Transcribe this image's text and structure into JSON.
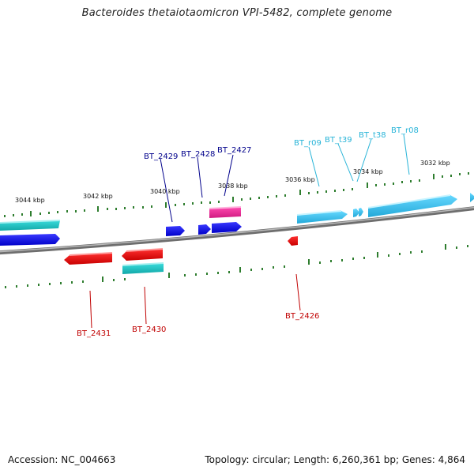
{
  "title": "Bacteroides thetaiotaomicron VPI-5482, complete genome",
  "footer": {
    "accession": "Accession: NC_004663",
    "summary": "Topology: circular; Length: 6,260,361 bp; Genes: 4,864"
  },
  "colors": {
    "backbone": "#8a8a8a",
    "tick": "#2e7d2e",
    "blue_label": "#00008b",
    "cyan_label": "#28b4d8",
    "red_label": "#c00000",
    "cds_blue": "#0000ee",
    "cds_red": "#ee0000",
    "cds_teal": "#1fc8c8",
    "cds_magenta": "#ee2a9a",
    "rna_cyan": "#3ec8f0"
  },
  "scale_labels": [
    "3044 kbp",
    "3042 kbp",
    "3040 kbp",
    "3038 kbp",
    "3036 kbp",
    "3034 kbp",
    "3032 kbp"
  ],
  "gene_labels": {
    "bt2429": "BT_2429",
    "bt2428": "BT_2428",
    "bt2427": "BT_2427",
    "btr09": "BT_r09",
    "btt39": "BT_t39",
    "btt38": "BT_t38",
    "btr08": "BT_r08",
    "bt2431": "BT_2431",
    "bt2430": "BT_2430",
    "bt2426": "BT_2426"
  }
}
